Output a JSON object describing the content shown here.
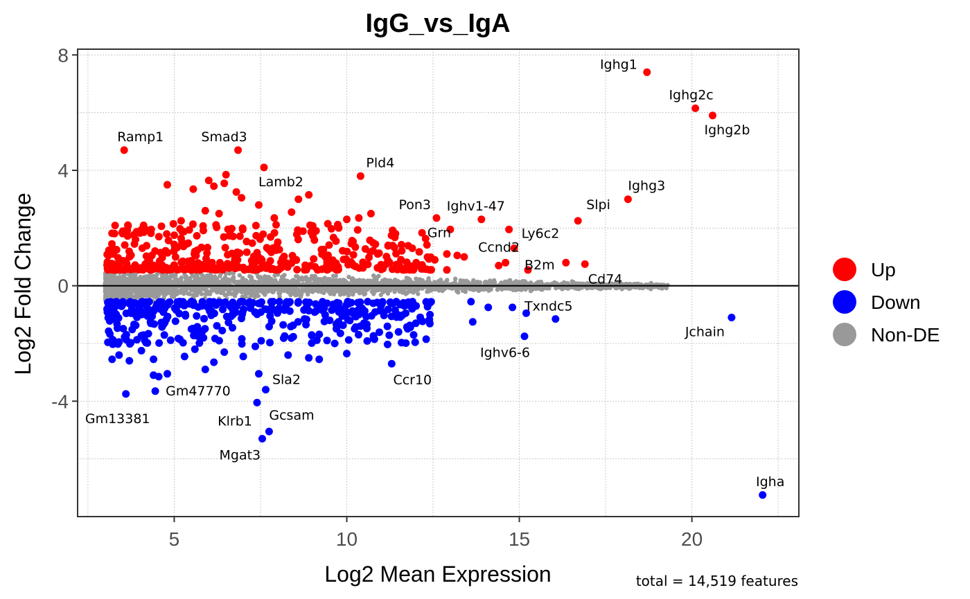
{
  "chart_data": {
    "type": "scatter",
    "title": "IgG_vs_IgA",
    "xlabel": "Log2 Mean Expression",
    "ylabel": "Log2 Fold Change",
    "caption": "total = 14,519 features",
    "xlim": [
      2.2,
      23.1
    ],
    "ylim": [
      -8.0,
      8.2
    ],
    "xticks": [
      5,
      10,
      15,
      20
    ],
    "xtick_labels": [
      "5",
      "10",
      "15",
      "20"
    ],
    "yticks": [
      8,
      4,
      0,
      -4
    ],
    "ytick_labels": [
      "8",
      "4",
      "0",
      "-4"
    ],
    "grid": true,
    "hline_y": 0,
    "legend_position": "right",
    "legend": [
      {
        "name": "Up",
        "color": "#ff0000"
      },
      {
        "name": "Down",
        "color": "#0000ff"
      },
      {
        "name": "Non-DE",
        "color": "#999999"
      }
    ],
    "series": [
      {
        "name": "Up",
        "color": "#ff0000",
        "points": [
          [
            3.55,
            4.7
          ],
          [
            6.85,
            4.7
          ],
          [
            7.6,
            4.1
          ],
          [
            4.8,
            3.5
          ],
          [
            5.55,
            3.35
          ],
          [
            6.0,
            3.65
          ],
          [
            6.5,
            3.85
          ],
          [
            6.15,
            3.45
          ],
          [
            6.45,
            3.55
          ],
          [
            6.8,
            3.25
          ],
          [
            6.95,
            3.05
          ],
          [
            7.45,
            2.8
          ],
          [
            8.6,
            3.0
          ],
          [
            8.9,
            3.15
          ],
          [
            8.4,
            2.55
          ],
          [
            10.4,
            3.8
          ],
          [
            10.7,
            2.5
          ],
          [
            10.35,
            2.35
          ],
          [
            10.0,
            2.3
          ],
          [
            12.6,
            2.35
          ],
          [
            13.0,
            1.95
          ],
          [
            13.9,
            2.3
          ],
          [
            14.7,
            1.95
          ],
          [
            16.7,
            2.25
          ],
          [
            18.15,
            3.0
          ],
          [
            18.7,
            7.4
          ],
          [
            20.1,
            6.15
          ],
          [
            20.6,
            5.9
          ],
          [
            12.9,
            1.1
          ],
          [
            13.2,
            1.05
          ],
          [
            13.4,
            1.0
          ],
          [
            14.85,
            1.3
          ],
          [
            14.6,
            0.8
          ],
          [
            15.25,
            0.55
          ],
          [
            16.35,
            0.8
          ],
          [
            16.9,
            0.75
          ],
          [
            12.2,
            0.65
          ],
          [
            11.6,
            0.6
          ],
          [
            12.9,
            0.55
          ],
          [
            14.4,
            0.7
          ],
          [
            5.9,
            2.6
          ],
          [
            6.3,
            2.5
          ],
          [
            7.9,
            2.35
          ],
          [
            9.45,
            2.15
          ],
          [
            11.2,
            1.4
          ],
          [
            11.9,
            1.3
          ],
          [
            12.55,
            0.9
          ],
          [
            5.2,
            2.25
          ]
        ]
      },
      {
        "name": "Down",
        "color": "#0000ff",
        "points": [
          [
            3.6,
            -3.75
          ],
          [
            4.45,
            -3.65
          ],
          [
            7.4,
            -4.05
          ],
          [
            7.65,
            -3.6
          ],
          [
            7.45,
            -3.05
          ],
          [
            7.75,
            -5.05
          ],
          [
            7.55,
            -5.3
          ],
          [
            11.3,
            -2.7
          ],
          [
            13.6,
            -0.55
          ],
          [
            15.15,
            -1.75
          ],
          [
            15.2,
            -0.95
          ],
          [
            16.05,
            -1.15
          ],
          [
            21.15,
            -1.1
          ],
          [
            22.05,
            -7.25
          ],
          [
            3.2,
            -2.55
          ],
          [
            3.4,
            -2.4
          ],
          [
            3.7,
            -2.6
          ],
          [
            4.4,
            -3.1
          ],
          [
            4.55,
            -3.15
          ],
          [
            4.8,
            -3.05
          ],
          [
            5.9,
            -2.9
          ],
          [
            6.15,
            -2.65
          ],
          [
            7.0,
            -2.45
          ],
          [
            8.9,
            -2.5
          ],
          [
            9.2,
            -2.55
          ],
          [
            10.0,
            -2.35
          ],
          [
            12.3,
            -1.85
          ],
          [
            13.65,
            -1.25
          ],
          [
            14.1,
            -0.75
          ],
          [
            14.8,
            -0.75
          ],
          [
            3.4,
            -1.95
          ],
          [
            4.05,
            -2.25
          ],
          [
            4.4,
            -2.55
          ],
          [
            5.3,
            -2.45
          ],
          [
            5.6,
            -2.2
          ],
          [
            6.45,
            -2.3
          ],
          [
            7.35,
            -2.1
          ],
          [
            8.3,
            -2.4
          ],
          [
            9.65,
            -2.0
          ],
          [
            10.8,
            -1.85
          ],
          [
            11.5,
            -1.6
          ],
          [
            12.0,
            -1.3
          ]
        ]
      }
    ],
    "labels": [
      {
        "text": "Ighg1",
        "x": 18.7,
        "y": 7.4
      },
      {
        "text": "Ighg2c",
        "x": 20.1,
        "y": 6.15
      },
      {
        "text": "Ighg2b",
        "x": 20.6,
        "y": 5.9
      },
      {
        "text": "Ramp1",
        "x": 3.55,
        "y": 4.7
      },
      {
        "text": "Smad3",
        "x": 6.85,
        "y": 4.7
      },
      {
        "text": "Pld4",
        "x": 10.4,
        "y": 3.8
      },
      {
        "text": "Lamb2",
        "x": 7.6,
        "y": 4.1
      },
      {
        "text": "Ighg3",
        "x": 18.15,
        "y": 3.0
      },
      {
        "text": "Pon3",
        "x": 12.6,
        "y": 2.35
      },
      {
        "text": "Ighv1-47",
        "x": 13.9,
        "y": 2.3
      },
      {
        "text": "Slpi",
        "x": 16.7,
        "y": 2.25
      },
      {
        "text": "Ly6c2",
        "x": 14.7,
        "y": 1.95
      },
      {
        "text": "Grn",
        "x": 13.0,
        "y": 1.95
      },
      {
        "text": "Ccnd2",
        "x": 14.85,
        "y": 1.3
      },
      {
        "text": "B2m",
        "x": 15.25,
        "y": 0.55
      },
      {
        "text": "Cd74",
        "x": 16.35,
        "y": 0.8
      },
      {
        "text": "Txndc5",
        "x": 16.05,
        "y": -1.15
      },
      {
        "text": "Jchain",
        "x": 21.15,
        "y": -1.1
      },
      {
        "text": "Ighv6-6",
        "x": 15.15,
        "y": -1.75
      },
      {
        "text": "Ccr10",
        "x": 11.3,
        "y": -2.7
      },
      {
        "text": "Sla2",
        "x": 7.65,
        "y": -3.6
      },
      {
        "text": "Gm47770",
        "x": 4.45,
        "y": -3.65
      },
      {
        "text": "Gm13381",
        "x": 3.6,
        "y": -3.75
      },
      {
        "text": "Klrb1",
        "x": 7.4,
        "y": -4.05
      },
      {
        "text": "Gcsam",
        "x": 7.75,
        "y": -5.05
      },
      {
        "text": "Mgat3",
        "x": 7.55,
        "y": -5.3
      },
      {
        "text": "Igha",
        "x": 22.05,
        "y": -7.25
      }
    ],
    "nonde_cloud": {
      "color": "#999999",
      "count": 14519,
      "xrange": [
        3.0,
        19.3
      ],
      "yrange": [
        -0.7,
        0.75
      ]
    }
  }
}
